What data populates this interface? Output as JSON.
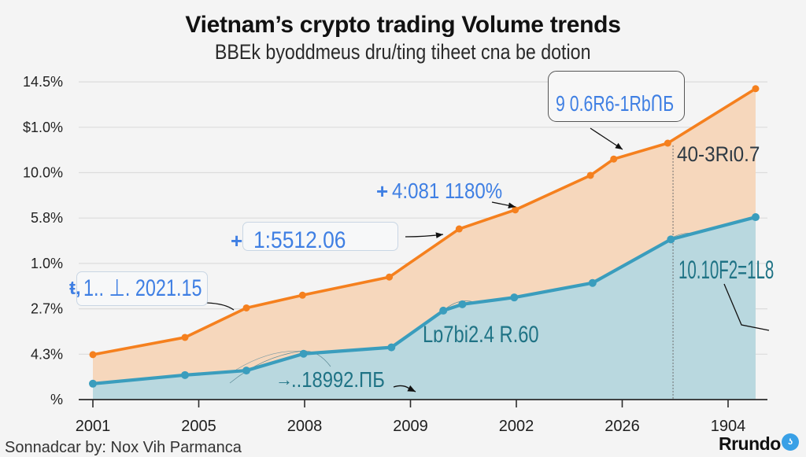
{
  "colors": {
    "background": "#f4f4f4",
    "orange_line": "#f5801e",
    "orange_fill": "#f6d7bc",
    "teal_line": "#3a9dbd",
    "teal_fill": "#b9d8df",
    "annotation_blue": "#3f7fe3",
    "annotation_teal": "#1f7385",
    "logo_badge": "#39a0e6"
  },
  "footer": {
    "credit": "Sonnadcar by: Nox Vih Parmanca",
    "logo_text": "Rrundo",
    "logo_badge_icon": "chat-bubble-icon",
    "logo_badge_glyph": "ʖ"
  },
  "chart_data": {
    "type": "area",
    "title": "Vietnam’s crypto trading Volume trends",
    "subtitle": "BBEk byoddmeus dru/ting tiheet cna be dotion",
    "xlabel": "",
    "ylabel": "",
    "x_units": "tick index (category positions of year labels)",
    "y_units": "gridline index (tick labels are non-monotonic)",
    "xlim": [
      -0.13,
      6.37
    ],
    "ylim": [
      0,
      7
    ],
    "grid": true,
    "legend": "none",
    "x_ticks": [
      {
        "value": 0,
        "label": "2001"
      },
      {
        "value": 1,
        "label": "2005"
      },
      {
        "value": 2,
        "label": "2008"
      },
      {
        "value": 3,
        "label": "2009"
      },
      {
        "value": 4,
        "label": "2002"
      },
      {
        "value": 5,
        "label": "2026"
      },
      {
        "value": 6,
        "label": "1904"
      }
    ],
    "y_ticks": [
      {
        "value": 0,
        "label": "%"
      },
      {
        "value": 1,
        "label": "4.3%"
      },
      {
        "value": 2,
        "label": "2.7%"
      },
      {
        "value": 3,
        "label": "1.0%"
      },
      {
        "value": 4,
        "label": "5.8%"
      },
      {
        "value": 5,
        "label": "10.0%"
      },
      {
        "value": 6,
        "label": "$1.0%"
      },
      {
        "value": 7,
        "label": "14.5%"
      }
    ],
    "series": [
      {
        "id": "orange",
        "color": "#f5801e",
        "fill": "#f6d7bc",
        "x": [
          0,
          0.87,
          1.45,
          1.98,
          2.8,
          3.46,
          3.99,
          4.7,
          4.92,
          5.43,
          6.26
        ],
        "y": [
          0.99,
          1.37,
          2.02,
          2.3,
          2.7,
          3.76,
          4.18,
          4.94,
          5.3,
          5.65,
          6.85
        ]
      },
      {
        "id": "teal",
        "color": "#3a9dbd",
        "fill": "#b9d8df",
        "x": [
          0,
          0.87,
          1.45,
          1.99,
          2.82,
          3.31,
          3.49,
          3.98,
          4.72,
          5.46,
          6.26
        ],
        "y": [
          0.35,
          0.54,
          0.64,
          1.01,
          1.15,
          1.96,
          2.1,
          2.25,
          2.57,
          3.53,
          4.02
        ]
      }
    ],
    "reference_line": {
      "orientation": "vertical",
      "x": 5.48,
      "y_range": [
        0,
        5.6
      ],
      "style": "dashed"
    },
    "annotations": [
      {
        "text": "9 0.6R6-1RbՈБ",
        "style": "boxed",
        "color": "blue"
      },
      {
        "text": "40-3Rι0.7",
        "style": "plain",
        "color": "dark"
      },
      {
        "text": "4:081 1180%",
        "style": "plain",
        "color": "blue",
        "icon": "plus-icon"
      },
      {
        "text": "1:5512.06",
        "style": "boxed",
        "color": "blue",
        "icon": "plus-icon"
      },
      {
        "text": "1.. ⊥. 2021.15",
        "style": "boxed",
        "color": "blue",
        "icon": "marker-icon"
      },
      {
        "text": "Lɒ7bi2.4 R.60",
        "style": "plain",
        "color": "teal"
      },
      {
        "text": "..18992.ΠБ",
        "style": "plain",
        "color": "teal",
        "icon": "arrow-right-icon"
      },
      {
        "text": "10.10F2=1L8",
        "style": "plain",
        "color": "teal"
      }
    ]
  }
}
